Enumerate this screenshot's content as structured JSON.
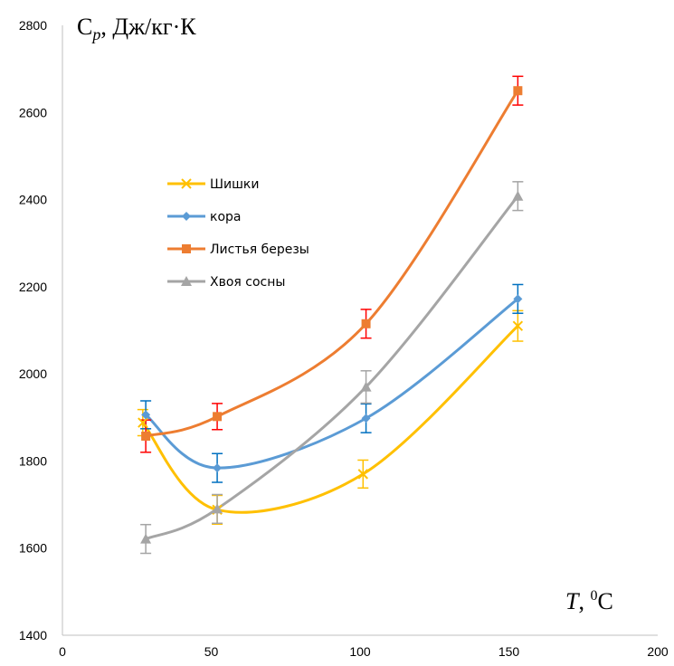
{
  "chart_data": {
    "type": "scatter",
    "xlim": [
      0,
      200
    ],
    "ylim": [
      1400,
      2800
    ],
    "x_ticks": [
      "0",
      "50",
      "100",
      "150",
      "200"
    ],
    "y_ticks": [
      "1400",
      "1600",
      "1800",
      "2000",
      "2200",
      "2400",
      "2600",
      "2800"
    ],
    "ylabel": {
      "main": "C",
      "sub": "p",
      "rest": ", Дж/кг·К"
    },
    "xlabel": {
      "main": "T",
      "rest1": ", ",
      "sup": "0",
      "rest2": "C"
    },
    "grid": false,
    "legend_position": "upper-left",
    "series": [
      {
        "name": "Шишки",
        "color": "#FFC000",
        "marker": "x",
        "error_color": "#FFC000",
        "x": [
          27,
          52,
          101,
          153
        ],
        "y": [
          1888,
          1688,
          1770,
          2110
        ],
        "error": [
          30,
          33,
          32,
          35
        ]
      },
      {
        "name": "кора",
        "color": "#5B9BD5",
        "marker": "diamond",
        "error_color": "#0070C0",
        "x": [
          28,
          52,
          102,
          153
        ],
        "y": [
          1906,
          1784,
          1898,
          2172
        ],
        "error": [
          32,
          33,
          33,
          33
        ]
      },
      {
        "name": "Листья березы",
        "color": "#ED7D31",
        "marker": "square",
        "error_color": "#FF0000",
        "x": [
          28,
          52,
          102,
          153
        ],
        "y": [
          1857,
          1902,
          2115,
          2650
        ],
        "error": [
          37,
          30,
          33,
          33
        ]
      },
      {
        "name": "Хвоя сосны",
        "color": "#A5A5A5",
        "marker": "triangle",
        "error_color": "#A5A5A5",
        "x": [
          28,
          52,
          102,
          153
        ],
        "y": [
          1621,
          1690,
          1970,
          2408
        ],
        "error": [
          33,
          33,
          37,
          33
        ]
      }
    ]
  }
}
